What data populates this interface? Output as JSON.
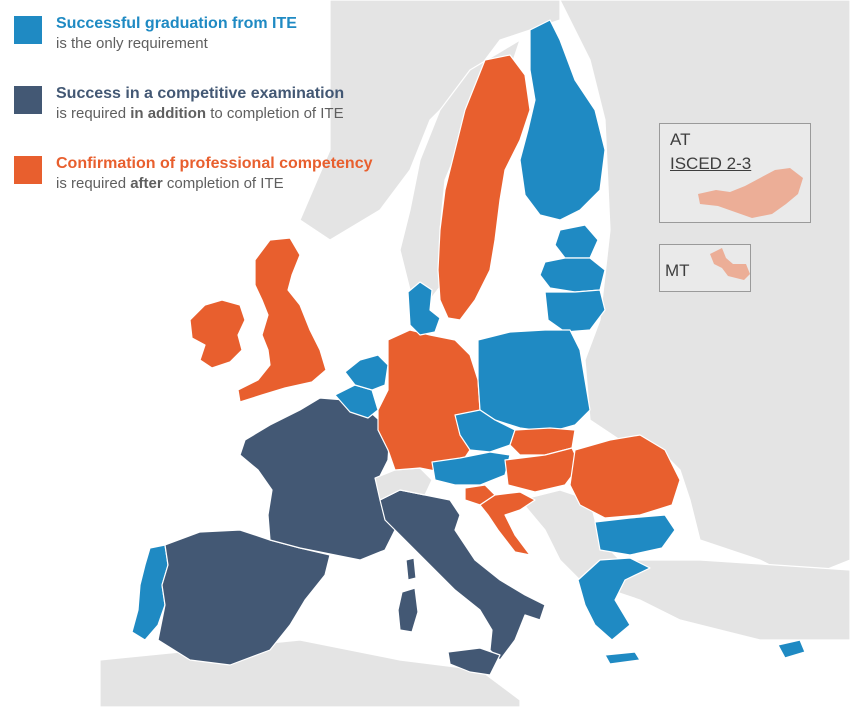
{
  "legend": {
    "items": [
      {
        "title": "Successful graduation from ITE",
        "sub_before": "is the only requirement",
        "sub_bold": "",
        "sub_after": "",
        "color": "#1f8ac3"
      },
      {
        "title": "Success in a competitive examination",
        "sub_before": "is required ",
        "sub_bold": "in addition",
        "sub_after": " to completion of ITE",
        "color": "#435874"
      },
      {
        "title": "Confirmation of professional competency",
        "sub_before": "is required ",
        "sub_bold": "after",
        "sub_after": " completion of ITE",
        "color": "#e85f2e"
      }
    ]
  },
  "insets": {
    "at": {
      "code": "AT",
      "sub": "ISCED 2-3",
      "color": "#e85f2e"
    },
    "mt": {
      "code": "MT",
      "color": "#e85f2e"
    }
  },
  "colors": {
    "graduation_only": "#1f8ac3",
    "competitive_exam": "#435874",
    "professional_competency": "#e85f2e",
    "non_eu": "#e4e4e4",
    "sea": "#ffffff",
    "border": "#ffffff"
  },
  "regions": [
    {
      "name": "Ireland",
      "category": "professional_competency"
    },
    {
      "name": "United Kingdom",
      "category": "professional_competency"
    },
    {
      "name": "Portugal",
      "category": "graduation_only"
    },
    {
      "name": "Spain",
      "category": "competitive_exam"
    },
    {
      "name": "France",
      "category": "competitive_exam"
    },
    {
      "name": "Italy",
      "category": "competitive_exam"
    },
    {
      "name": "Germany",
      "category": "professional_competency"
    },
    {
      "name": "Belgium",
      "category": "graduation_only"
    },
    {
      "name": "Netherlands",
      "category": "graduation_only"
    },
    {
      "name": "Denmark",
      "category": "graduation_only"
    },
    {
      "name": "Sweden",
      "category": "professional_competency"
    },
    {
      "name": "Finland",
      "category": "graduation_only"
    },
    {
      "name": "Estonia",
      "category": "graduation_only"
    },
    {
      "name": "Latvia",
      "category": "graduation_only"
    },
    {
      "name": "Lithuania",
      "category": "graduation_only"
    },
    {
      "name": "Poland",
      "category": "graduation_only"
    },
    {
      "name": "Czechia",
      "category": "graduation_only"
    },
    {
      "name": "Slovakia",
      "category": "professional_competency"
    },
    {
      "name": "Austria",
      "category": "graduation_only"
    },
    {
      "name": "Hungary",
      "category": "professional_competency"
    },
    {
      "name": "Slovenia",
      "category": "professional_competency"
    },
    {
      "name": "Croatia",
      "category": "professional_competency"
    },
    {
      "name": "Romania",
      "category": "professional_competency"
    },
    {
      "name": "Bulgaria",
      "category": "graduation_only"
    },
    {
      "name": "Greece",
      "category": "graduation_only"
    },
    {
      "name": "Cyprus",
      "category": "graduation_only"
    },
    {
      "name": "Switzerland",
      "category": "non_eu"
    }
  ]
}
